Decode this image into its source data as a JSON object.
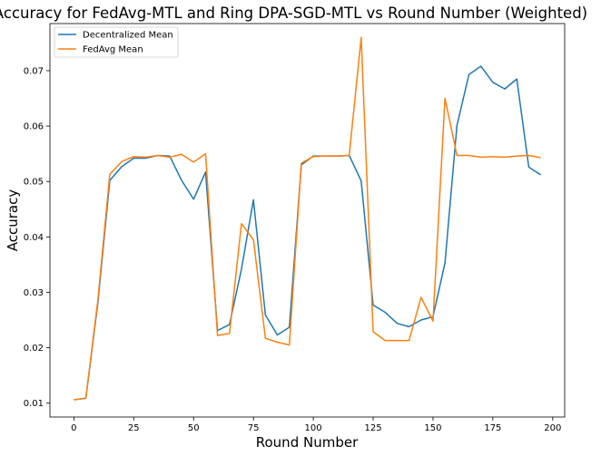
{
  "chart_data": {
    "type": "line",
    "title": "Accuracy for FedAvg-MTL and Ring DPA-SGD-MTL vs Round Number (Weighted)",
    "xlabel": "Round Number",
    "ylabel": "Accuracy",
    "xlim": [
      -10,
      205
    ],
    "ylim": [
      0.0075,
      0.0785
    ],
    "xticks": [
      0,
      25,
      50,
      75,
      100,
      125,
      150,
      175,
      200
    ],
    "yticks": [
      0.01,
      0.02,
      0.03,
      0.04,
      0.05,
      0.06,
      0.07
    ],
    "grid": false,
    "legend": {
      "placement": "top-left"
    },
    "x": [
      0,
      5,
      10,
      15,
      20,
      25,
      30,
      35,
      40,
      45,
      50,
      55,
      60,
      65,
      70,
      75,
      80,
      85,
      90,
      95,
      100,
      105,
      110,
      115,
      120,
      125,
      130,
      135,
      140,
      145,
      150,
      155,
      160,
      165,
      170,
      175,
      180,
      185,
      190,
      195
    ],
    "series": [
      {
        "name": "Decentralized Mean",
        "color": "#1f77b4",
        "values": [
          0.0106,
          0.0109,
          0.028,
          0.0502,
          0.0527,
          0.0542,
          0.0542,
          0.0547,
          0.0546,
          0.0502,
          0.0468,
          0.0517,
          0.0231,
          0.0242,
          0.0342,
          0.0467,
          0.0259,
          0.0223,
          0.0237,
          0.053,
          0.0546,
          0.0546,
          0.0546,
          0.0547,
          0.0501,
          0.0277,
          0.0264,
          0.0244,
          0.0238,
          0.025,
          0.0256,
          0.0353,
          0.0601,
          0.0693,
          0.0708,
          0.0679,
          0.0667,
          0.0685,
          0.0526,
          0.0512
        ]
      },
      {
        "name": "FedAvg Mean",
        "color": "#ff7f0e",
        "values": [
          0.0106,
          0.0109,
          0.0285,
          0.0513,
          0.0536,
          0.0545,
          0.0544,
          0.0547,
          0.0544,
          0.0549,
          0.0535,
          0.055,
          0.0222,
          0.0226,
          0.0424,
          0.0395,
          0.0217,
          0.021,
          0.0205,
          0.0533,
          0.0545,
          0.0546,
          0.0546,
          0.0547,
          0.076,
          0.0229,
          0.0213,
          0.0213,
          0.0213,
          0.0291,
          0.0248,
          0.065,
          0.0547,
          0.0547,
          0.0544,
          0.0545,
          0.0544,
          0.0546,
          0.0547,
          0.0543
        ]
      }
    ]
  }
}
